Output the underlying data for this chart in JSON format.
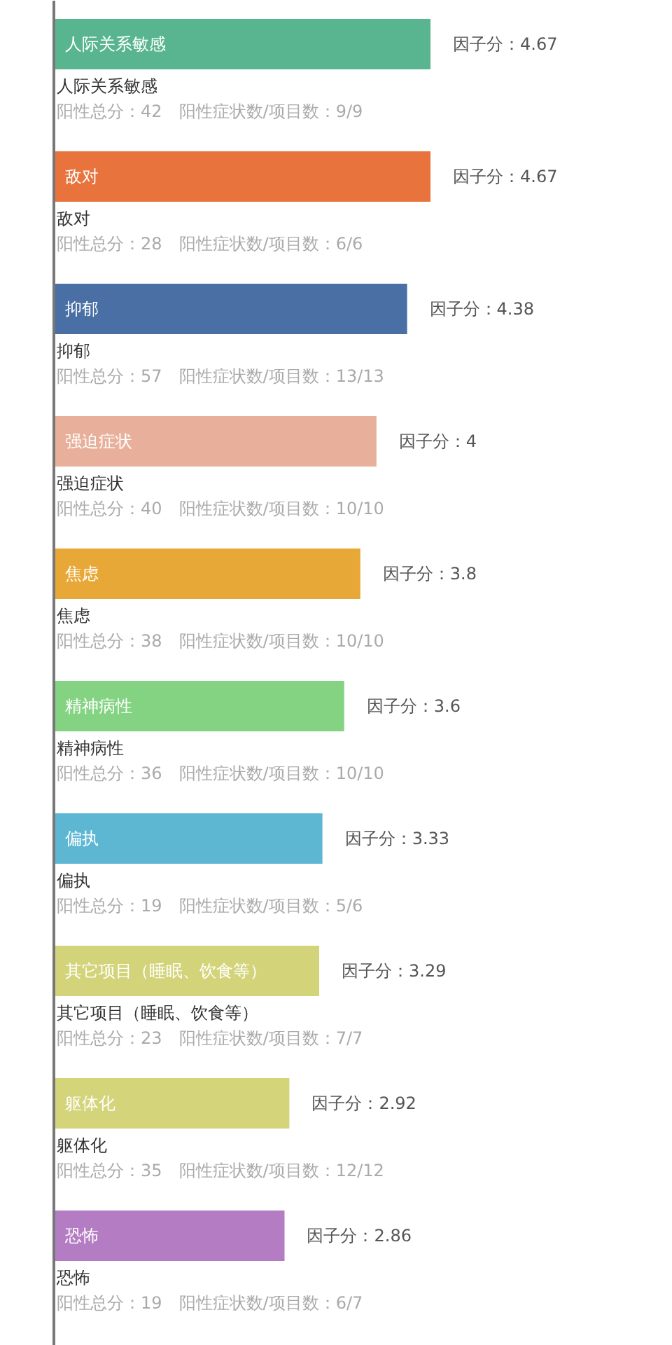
{
  "chart_data": {
    "type": "bar",
    "orientation": "horizontal",
    "categories": [
      "人际关系敏感",
      "敌对",
      "抑郁",
      "强迫症状",
      "焦虑",
      "精神病性",
      "偏执",
      "其它项目（睡眠、饮食等）",
      "躯体化",
      "恐怖"
    ],
    "values": [
      4.67,
      4.67,
      4.38,
      4,
      3.8,
      3.6,
      3.33,
      3.29,
      2.92,
      2.86
    ],
    "colors": [
      "#58b58f",
      "#e8733d",
      "#4a6fa5",
      "#e8b09a",
      "#e8a838",
      "#84d383",
      "#5db7d3",
      "#d3d47a",
      "#d4d47b",
      "#b47cc3"
    ],
    "value_labels": [
      "因子分：4.67",
      "因子分：4.67",
      "因子分：4.38",
      "因子分：4",
      "因子分：3.8",
      "因子分：3.6",
      "因子分：3.33",
      "因子分：3.29",
      "因子分：2.92",
      "因子分：2.86"
    ],
    "annotations": [
      "阳性总分：42　阳性症状数/项目数：9/9",
      "阳性总分：28　阳性症状数/项目数：6/6",
      "阳性总分：57　阳性症状数/项目数：13/13",
      "阳性总分：40　阳性症状数/项目数：10/10",
      "阳性总分：38　阳性症状数/项目数：10/10",
      "阳性总分：36　阳性症状数/项目数：10/10",
      "阳性总分：19　阳性症状数/项目数：5/6",
      "阳性总分：23　阳性症状数/项目数：7/7",
      "阳性总分：35　阳性症状数/项目数：12/12",
      "阳性总分：19　阳性症状数/项目数：6/7"
    ]
  }
}
